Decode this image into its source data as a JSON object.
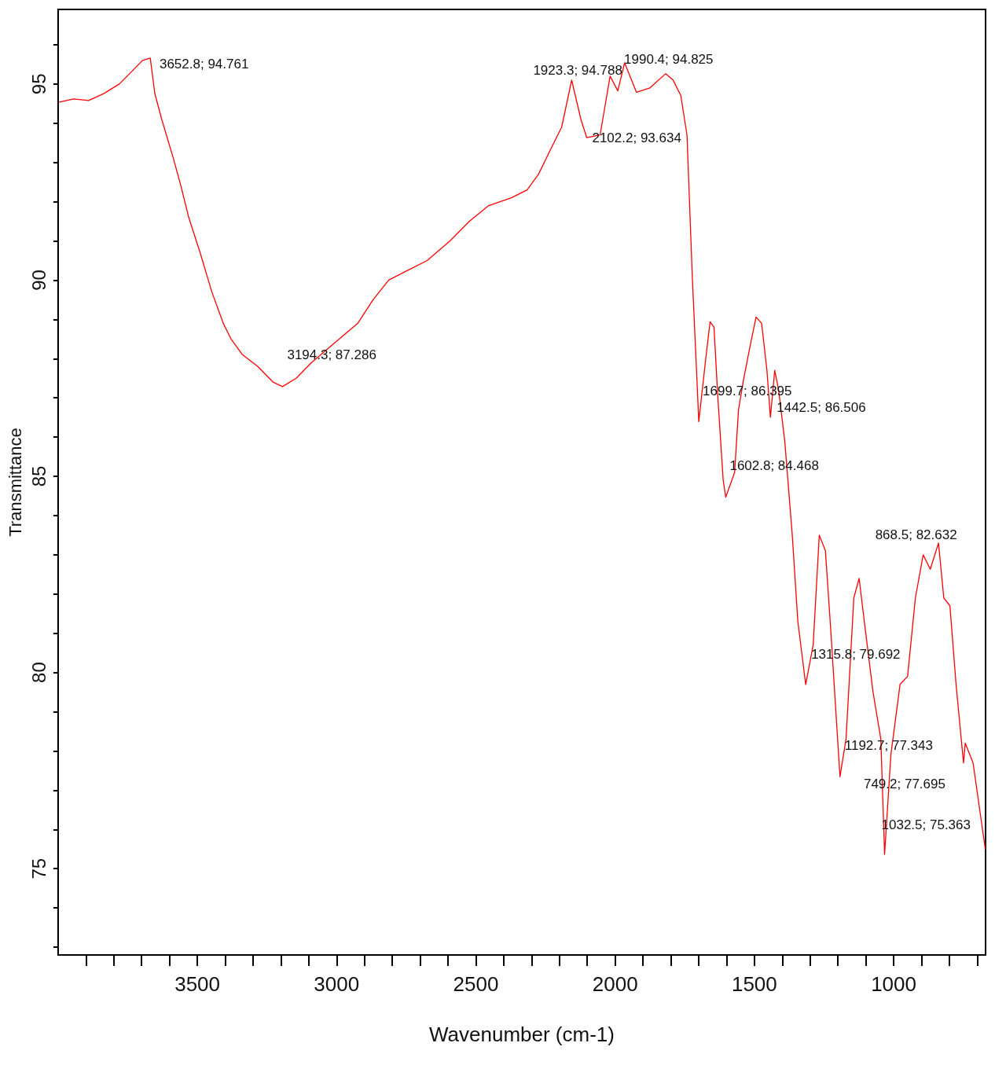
{
  "chart_data": {
    "type": "line",
    "xlabel": "Wavenumber (cm-1)",
    "ylabel": "Transmittance",
    "xlim": [
      4000,
      670
    ],
    "ylim": [
      72.8,
      96.9
    ],
    "xticks": [
      {
        "value": 700,
        "label": null
      },
      {
        "value": 800,
        "label": null
      },
      {
        "value": 900,
        "label": null
      },
      1000,
      {
        "value": 1100,
        "label": null
      },
      {
        "value": 1200,
        "label": null
      },
      {
        "value": 1300,
        "label": null
      },
      {
        "value": 1400,
        "label": null
      },
      1500,
      {
        "value": 1600,
        "label": null
      },
      {
        "value": 1700,
        "label": null
      },
      {
        "value": 1800,
        "label": null
      },
      {
        "value": 1900,
        "label": null
      },
      2000,
      {
        "value": 2100,
        "label": null
      },
      {
        "value": 2200,
        "label": null
      },
      {
        "value": 2300,
        "label": null
      },
      {
        "value": 2400,
        "label": null
      },
      2500,
      {
        "value": 2600,
        "label": null
      },
      {
        "value": 2700,
        "label": null
      },
      {
        "value": 2800,
        "label": null
      },
      {
        "value": 2900,
        "label": null
      },
      3000,
      {
        "value": 3100,
        "label": null
      },
      {
        "value": 3200,
        "label": null
      },
      {
        "value": 3300,
        "label": null
      },
      {
        "value": 3400,
        "label": null
      },
      3500,
      {
        "value": 3600,
        "label": null
      },
      {
        "value": 3700,
        "label": null
      },
      {
        "value": 3800,
        "label": null
      },
      {
        "value": 3900,
        "label": null
      }
    ],
    "yticks": [
      {
        "value": 73,
        "label": null
      },
      {
        "value": 74,
        "label": null
      },
      75,
      {
        "value": 76,
        "label": null
      },
      {
        "value": 77,
        "label": null
      },
      {
        "value": 78,
        "label": null
      },
      {
        "value": 79,
        "label": null
      },
      80,
      {
        "value": 81,
        "label": null
      },
      {
        "value": 82,
        "label": null
      },
      {
        "value": 83,
        "label": null
      },
      {
        "value": 84,
        "label": null
      },
      85,
      {
        "value": 86,
        "label": null
      },
      {
        "value": 87,
        "label": null
      },
      {
        "value": 88,
        "label": null
      },
      {
        "value": 89,
        "label": null
      },
      90,
      {
        "value": 91,
        "label": null
      },
      {
        "value": 92,
        "label": null
      },
      {
        "value": 93,
        "label": null
      },
      {
        "value": 94,
        "label": null
      },
      95,
      {
        "value": 96,
        "label": null
      }
    ],
    "grid": false,
    "marker": "none",
    "line_style": "solid",
    "series": [
      {
        "color": "#ff0000",
        "x": [
          3995,
          3945,
          3890,
          3835,
          3780,
          3738,
          3697,
          3669,
          3652.8,
          3628,
          3586,
          3559,
          3531,
          3490,
          3448,
          3407,
          3379,
          3338,
          3283,
          3228,
          3194.3,
          3145,
          3090,
          3007,
          2924,
          2869,
          2813,
          2758,
          2675,
          2593,
          2523,
          2454,
          2372,
          2316,
          2275,
          2234,
          2192,
          2156,
          2123,
          2102.2,
          2054,
          2018,
          1990.4,
          1966,
          1923.3,
          1875,
          1819,
          1792,
          1764,
          1742,
          1723,
          1709,
          1699.7,
          1673,
          1659,
          1645,
          1632,
          1612,
          1602.8,
          1571,
          1557,
          1538,
          1516,
          1494,
          1474,
          1455,
          1442.5,
          1427,
          1413,
          1391,
          1364,
          1344,
          1315.8,
          1289,
          1267,
          1245,
          1226,
          1192.7,
          1171,
          1143,
          1124,
          1102,
          1074,
          1046,
          1032.5,
          1010,
          977,
          950,
          922,
          894,
          868.5,
          839,
          820,
          798,
          776,
          749.2,
          743,
          715,
          671
        ],
        "values": [
          94.54,
          94.62,
          94.58,
          94.76,
          95,
          95.3,
          95.6,
          95.66,
          94.761,
          94.1,
          93.1,
          92.4,
          91.6,
          90.7,
          89.7,
          88.9,
          88.5,
          88.1,
          87.8,
          87.4,
          87.286,
          87.5,
          87.9,
          88.4,
          88.9,
          89.5,
          90,
          90.2,
          90.5,
          91,
          91.5,
          91.9,
          92.1,
          92.3,
          92.7,
          93.3,
          93.9,
          95.1,
          94.1,
          93.634,
          93.7,
          95.2,
          94.825,
          95.54,
          94.788,
          94.9,
          95.26,
          95.1,
          94.7,
          93.7,
          90.1,
          87.9,
          86.395,
          88.1,
          88.94,
          88.8,
          87.1,
          84.9,
          84.468,
          85.1,
          86.7,
          87.5,
          88.3,
          89.06,
          88.9,
          87.7,
          86.506,
          87.7,
          87.2,
          85.9,
          83.5,
          81.3,
          79.692,
          80.7,
          83.5,
          83.1,
          81.1,
          77.343,
          78.3,
          81.9,
          82.4,
          81.1,
          79.5,
          78.3,
          75.363,
          77.9,
          79.7,
          79.9,
          81.9,
          83,
          82.632,
          83.3,
          81.9,
          81.7,
          79.7,
          77.695,
          78.2,
          77.7,
          75.5
        ]
      }
    ],
    "annotations": [
      {
        "text": "3652.8; 94.761",
        "x": 3652.8,
        "y": 94.761
      },
      {
        "text": "3194.3; 87.286",
        "x": 3194.3,
        "y": 87.286
      },
      {
        "text": "1923.3; 94.788",
        "x": 1923.3,
        "y": 94.788
      },
      {
        "text": "1990.4; 94.825",
        "x": 1990.4,
        "y": 94.825
      },
      {
        "text": "2102.2; 93.634",
        "x": 2102.2,
        "y": 93.634
      },
      {
        "text": "1442.5; 86.506",
        "x": 1442.5,
        "y": 86.506
      },
      {
        "text": "1699.7; 86.395",
        "x": 1699.7,
        "y": 86.395
      },
      {
        "text": "1602.8; 84.468",
        "x": 1602.8,
        "y": 84.468
      },
      {
        "text": "868.5; 82.632",
        "x": 868.5,
        "y": 82.632
      },
      {
        "text": "1315.8; 79.692",
        "x": 1315.8,
        "y": 79.692
      },
      {
        "text": "1192.7; 77.343",
        "x": 1192.7,
        "y": 77.343
      },
      {
        "text": "749.2; 77.695",
        "x": 749.2,
        "y": 77.695
      },
      {
        "text": "1032.5; 75.363",
        "x": 1032.5,
        "y": 75.363
      }
    ]
  }
}
